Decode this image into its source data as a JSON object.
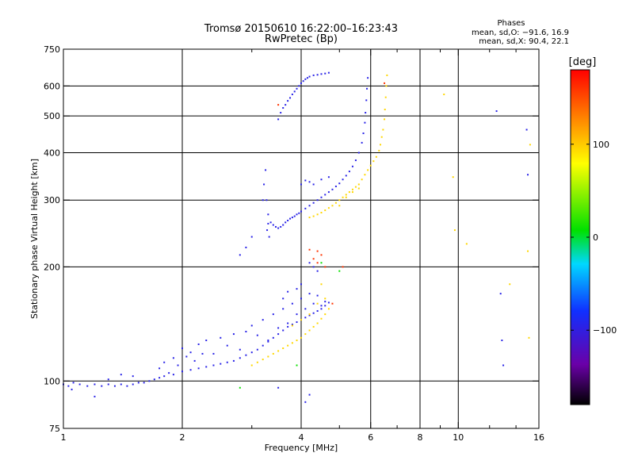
{
  "chart_data": {
    "type": "scatter",
    "title": "Tromsø 20150610 16:22:00–16:23:43",
    "subtitle": "RwPretec (Bp)",
    "xlabel": "Frequency [MHz]",
    "ylabel": "Stationary phase Virtual Height [km]",
    "x_scale": "log",
    "y_scale": "log",
    "xlim": [
      1,
      16
    ],
    "ylim": [
      75,
      750
    ],
    "x_ticks": [
      1,
      2,
      4,
      6,
      8,
      10,
      16
    ],
    "x_minor_ticks": [
      3,
      5,
      7,
      9,
      12,
      14
    ],
    "x_gridlines": [
      2,
      4,
      6,
      8,
      10
    ],
    "y_ticks": [
      75,
      100,
      200,
      300,
      400,
      500,
      600,
      750
    ],
    "y_gridlines": [
      100,
      200,
      300,
      400,
      500,
      600
    ],
    "grid": true,
    "stats": {
      "heading": "Phases",
      "line_o": "mean, sd,O: −91.6, 16.9",
      "line_x": "mean, sd,X:  90.4, 22.1"
    },
    "colorbar": {
      "label": "[deg]",
      "range": [
        -180,
        180
      ],
      "ticks": [
        -100,
        0,
        100
      ],
      "colormap": "rainbow"
    },
    "series": [
      {
        "phase_deg": -95,
        "points": [
          [
            1.0,
            98
          ],
          [
            1.03,
            97
          ],
          [
            1.06,
            99
          ],
          [
            1.1,
            98
          ],
          [
            1.15,
            97
          ],
          [
            1.2,
            98
          ],
          [
            1.25,
            97
          ],
          [
            1.3,
            98
          ],
          [
            1.35,
            97
          ],
          [
            1.4,
            98
          ],
          [
            1.45,
            97
          ],
          [
            1.5,
            98
          ],
          [
            1.55,
            99
          ],
          [
            1.6,
            99
          ],
          [
            1.65,
            100
          ],
          [
            1.7,
            101
          ],
          [
            1.75,
            102
          ],
          [
            1.8,
            103
          ],
          [
            1.9,
            104
          ],
          [
            2.0,
            106
          ],
          [
            2.1,
            107
          ],
          [
            2.2,
            108
          ],
          [
            2.3,
            109
          ],
          [
            2.4,
            110
          ],
          [
            2.5,
            111
          ],
          [
            2.6,
            112
          ],
          [
            2.7,
            113
          ],
          [
            2.8,
            115
          ],
          [
            2.9,
            117
          ],
          [
            3.0,
            119
          ],
          [
            3.1,
            121
          ],
          [
            3.2,
            124
          ],
          [
            3.3,
            127
          ],
          [
            3.4,
            130
          ],
          [
            3.5,
            133
          ],
          [
            3.6,
            136
          ],
          [
            3.7,
            139
          ],
          [
            3.8,
            141
          ],
          [
            3.9,
            143
          ],
          [
            4.0,
            145
          ],
          [
            4.1,
            147
          ],
          [
            4.2,
            149
          ],
          [
            4.3,
            151
          ],
          [
            4.4,
            153
          ],
          [
            4.5,
            155
          ],
          [
            4.6,
            158
          ],
          [
            4.7,
            161
          ],
          [
            2.0,
            122
          ],
          [
            2.1,
            119
          ],
          [
            2.2,
            125
          ],
          [
            2.3,
            128
          ],
          [
            2.4,
            118
          ],
          [
            2.5,
            130
          ],
          [
            2.6,
            124
          ],
          [
            2.7,
            133
          ],
          [
            2.8,
            121
          ],
          [
            2.9,
            135
          ],
          [
            3.0,
            140
          ],
          [
            3.1,
            132
          ],
          [
            3.2,
            145
          ],
          [
            3.3,
            128
          ],
          [
            3.4,
            150
          ],
          [
            3.5,
            138
          ],
          [
            3.6,
            155
          ],
          [
            3.7,
            142
          ],
          [
            3.8,
            160
          ],
          [
            3.9,
            150
          ],
          [
            4.0,
            165
          ],
          [
            4.1,
            155
          ],
          [
            4.2,
            170
          ],
          [
            4.3,
            160
          ],
          [
            4.4,
            168
          ],
          [
            4.5,
            158
          ],
          [
            4.6,
            162
          ],
          [
            1.75,
            108
          ],
          [
            1.8,
            112
          ],
          [
            1.85,
            105
          ],
          [
            1.9,
            115
          ],
          [
            1.95,
            110
          ],
          [
            2.05,
            116
          ],
          [
            2.15,
            113
          ],
          [
            2.25,
            118
          ],
          [
            1.5,
            103
          ],
          [
            1.4,
            104
          ],
          [
            1.3,
            101
          ],
          [
            3.3,
            260
          ],
          [
            3.35,
            262
          ],
          [
            3.4,
            258
          ],
          [
            3.45,
            255
          ],
          [
            3.5,
            253
          ],
          [
            3.55,
            255
          ],
          [
            3.6,
            258
          ],
          [
            3.65,
            262
          ],
          [
            3.7,
            265
          ],
          [
            3.75,
            268
          ],
          [
            3.8,
            270
          ],
          [
            3.85,
            272
          ],
          [
            3.9,
            275
          ],
          [
            3.95,
            277
          ],
          [
            4.0,
            280
          ],
          [
            4.1,
            285
          ],
          [
            4.2,
            290
          ],
          [
            4.3,
            295
          ],
          [
            4.4,
            300
          ],
          [
            4.5,
            305
          ],
          [
            4.6,
            310
          ],
          [
            4.7,
            315
          ],
          [
            4.8,
            320
          ],
          [
            4.9,
            326
          ],
          [
            5.0,
            332
          ],
          [
            5.1,
            340
          ],
          [
            5.2,
            348
          ],
          [
            5.3,
            357
          ],
          [
            5.4,
            368
          ],
          [
            5.5,
            382
          ],
          [
            5.6,
            400
          ],
          [
            5.7,
            425
          ],
          [
            5.75,
            450
          ],
          [
            5.8,
            480
          ],
          [
            5.82,
            510
          ],
          [
            5.85,
            550
          ],
          [
            5.87,
            590
          ],
          [
            5.9,
            630
          ],
          [
            3.2,
            300
          ],
          [
            3.22,
            330
          ],
          [
            3.25,
            360
          ],
          [
            3.27,
            300
          ],
          [
            3.3,
            275
          ],
          [
            3.32,
            240
          ],
          [
            3.28,
            250
          ],
          [
            3.5,
            490
          ],
          [
            3.55,
            510
          ],
          [
            3.6,
            525
          ],
          [
            3.65,
            535
          ],
          [
            3.7,
            548
          ],
          [
            3.75,
            558
          ],
          [
            3.8,
            570
          ],
          [
            3.85,
            580
          ],
          [
            3.9,
            590
          ],
          [
            3.95,
            600
          ],
          [
            4.0,
            610
          ],
          [
            4.05,
            618
          ],
          [
            4.1,
            625
          ],
          [
            4.15,
            630
          ],
          [
            4.2,
            635
          ],
          [
            4.3,
            640
          ],
          [
            4.4,
            642
          ],
          [
            4.5,
            645
          ],
          [
            4.6,
            647
          ],
          [
            4.7,
            650
          ],
          [
            4.0,
            330
          ],
          [
            4.1,
            338
          ],
          [
            4.2,
            335
          ],
          [
            4.3,
            330
          ],
          [
            4.5,
            340
          ],
          [
            4.7,
            345
          ],
          [
            4.2,
            205
          ],
          [
            4.3,
            200
          ],
          [
            4.4,
            195
          ],
          [
            4.0,
            180
          ],
          [
            3.9,
            175
          ],
          [
            3.6,
            165
          ],
          [
            3.7,
            172
          ],
          [
            2.9,
            225
          ],
          [
            3.0,
            240
          ],
          [
            2.8,
            215
          ],
          [
            1.2,
            91
          ],
          [
            1.05,
            95
          ],
          [
            3.5,
            96
          ],
          [
            4.2,
            92
          ],
          [
            4.1,
            88
          ],
          [
            12.5,
            515
          ],
          [
            13.0,
            110
          ],
          [
            12.8,
            170
          ],
          [
            15.0,
            350
          ],
          [
            14.9,
            460
          ],
          [
            12.9,
            128
          ]
        ]
      },
      {
        "phase_deg": 95,
        "points": [
          [
            3.0,
            110
          ],
          [
            3.1,
            112
          ],
          [
            3.2,
            114
          ],
          [
            3.3,
            116
          ],
          [
            3.4,
            118
          ],
          [
            3.5,
            120
          ],
          [
            3.6,
            122
          ],
          [
            3.7,
            124
          ],
          [
            3.8,
            126
          ],
          [
            3.9,
            128
          ],
          [
            4.0,
            130
          ],
          [
            4.1,
            133
          ],
          [
            4.2,
            136
          ],
          [
            4.3,
            139
          ],
          [
            4.4,
            142
          ],
          [
            4.5,
            146
          ],
          [
            4.6,
            150
          ],
          [
            4.7,
            155
          ],
          [
            4.2,
            270
          ],
          [
            4.3,
            272
          ],
          [
            4.4,
            275
          ],
          [
            4.5,
            278
          ],
          [
            4.6,
            282
          ],
          [
            4.7,
            286
          ],
          [
            4.8,
            290
          ],
          [
            4.9,
            295
          ],
          [
            5.0,
            300
          ],
          [
            5.1,
            305
          ],
          [
            5.2,
            310
          ],
          [
            5.3,
            315
          ],
          [
            5.4,
            320
          ],
          [
            5.5,
            325
          ],
          [
            5.6,
            330
          ],
          [
            5.7,
            340
          ],
          [
            5.8,
            350
          ],
          [
            5.9,
            360
          ],
          [
            6.0,
            370
          ],
          [
            6.1,
            380
          ],
          [
            6.2,
            390
          ],
          [
            6.3,
            405
          ],
          [
            6.35,
            420
          ],
          [
            6.4,
            440
          ],
          [
            6.45,
            460
          ],
          [
            6.5,
            490
          ],
          [
            6.52,
            520
          ],
          [
            6.55,
            560
          ],
          [
            6.57,
            600
          ],
          [
            6.6,
            640
          ],
          [
            5.0,
            290
          ],
          [
            5.2,
            305
          ],
          [
            5.4,
            315
          ],
          [
            5.6,
            322
          ],
          [
            4.0,
            145
          ],
          [
            4.2,
            150
          ],
          [
            4.4,
            160
          ],
          [
            4.6,
            165
          ],
          [
            3.8,
            140
          ],
          [
            4.5,
            180
          ],
          [
            9.7,
            345
          ],
          [
            9.8,
            250
          ],
          [
            15.0,
            220
          ],
          [
            15.1,
            130
          ],
          [
            13.5,
            180
          ],
          [
            10.5,
            230
          ],
          [
            9.2,
            570
          ],
          [
            15.2,
            420
          ]
        ]
      },
      {
        "phase_deg": 160,
        "points": [
          [
            4.3,
            210
          ],
          [
            4.4,
            205
          ],
          [
            4.5,
            215
          ],
          [
            4.6,
            200
          ],
          [
            4.4,
            220
          ],
          [
            5.1,
            200
          ],
          [
            4.2,
            222
          ],
          [
            3.5,
            535
          ],
          [
            4.8,
            160
          ],
          [
            6.5,
            610
          ]
        ]
      },
      {
        "phase_deg": 10,
        "points": [
          [
            2.8,
            96
          ],
          [
            4.5,
            205
          ],
          [
            5.0,
            195
          ],
          [
            3.9,
            110
          ]
        ]
      }
    ]
  }
}
